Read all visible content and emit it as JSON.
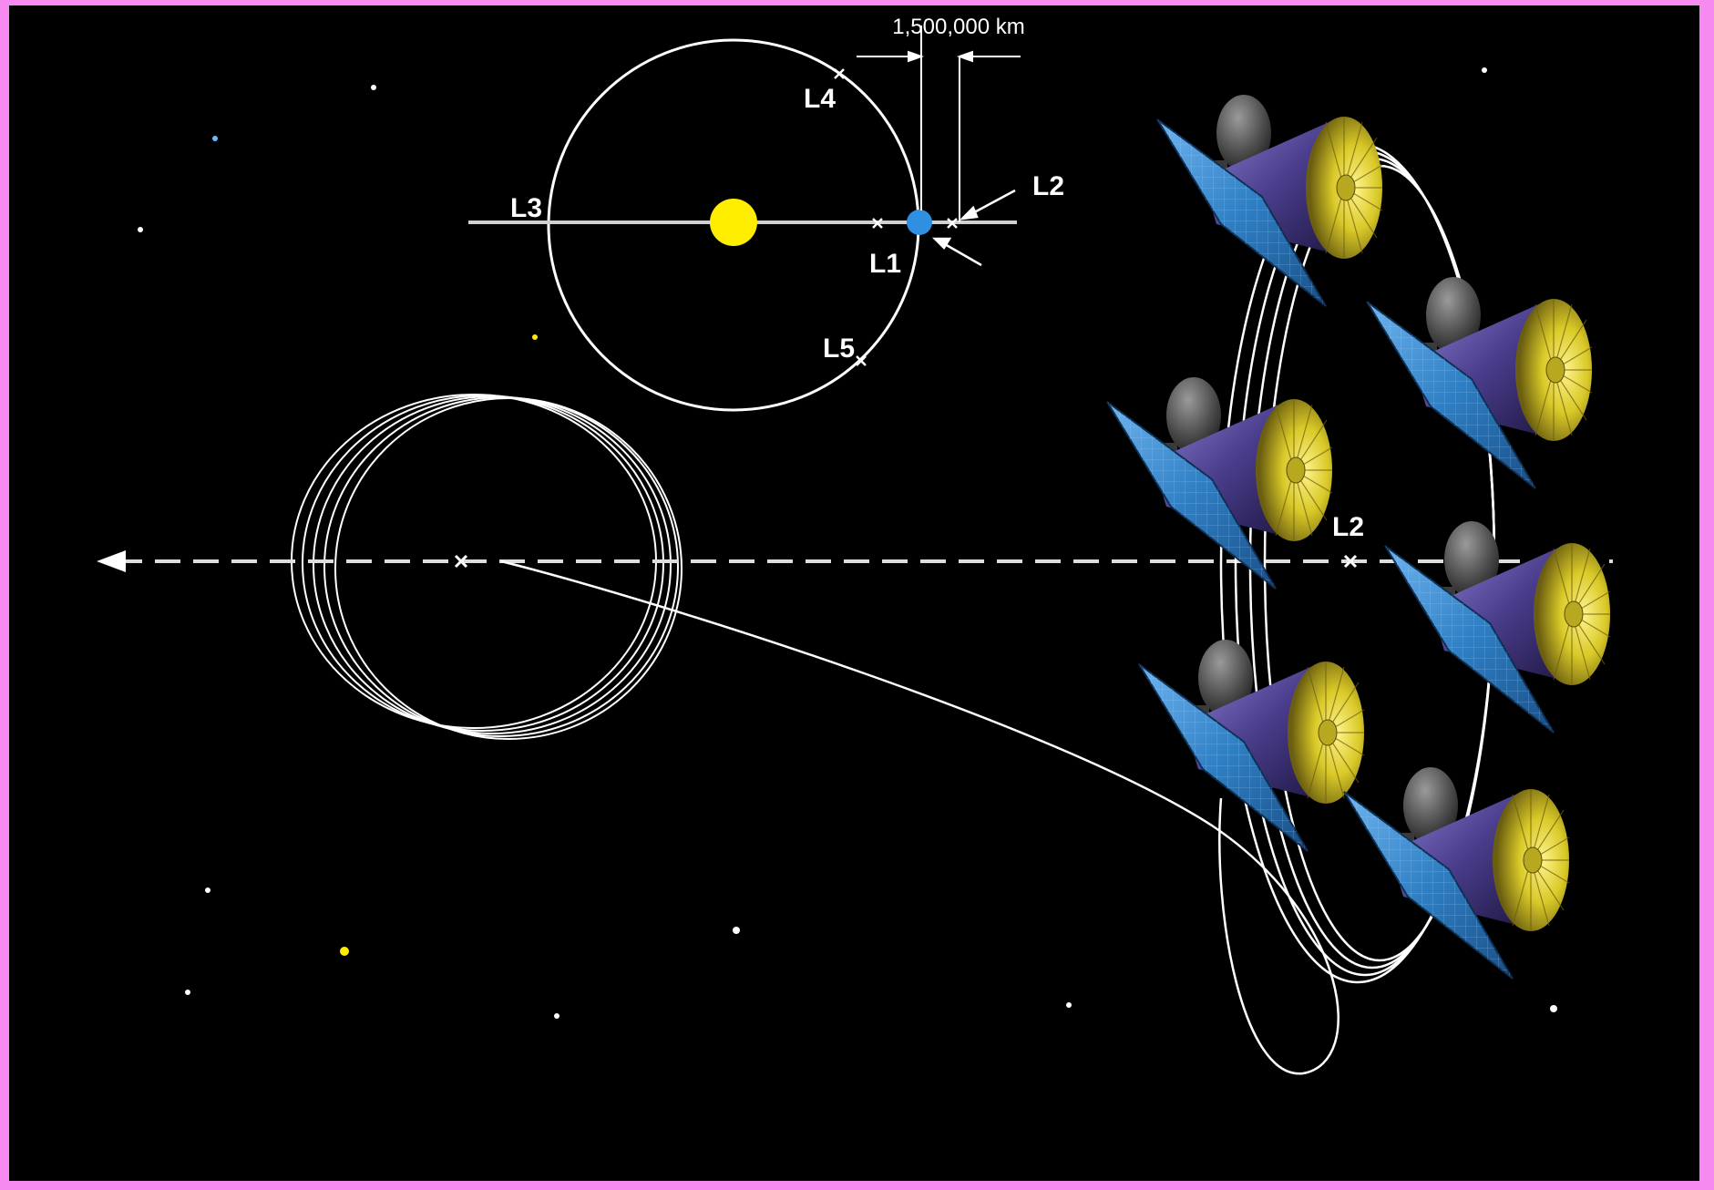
{
  "labels": {
    "distance": "1,500,000 km",
    "l1": "L1",
    "l2_inset": "L2",
    "l3": "L3",
    "l4": "L4",
    "l5": "L5",
    "l2_main": "L2"
  },
  "colors": {
    "background": "#000000",
    "frame": "#f78af0",
    "sun": "#ffee00",
    "earth": "#2f8fe0",
    "orbit": "#ffffff",
    "solar_panel": "#2f7fc4",
    "dish": "#e0d430",
    "spacecraft_body": "#4a3d8c"
  },
  "icons": {
    "sun": "sun-icon",
    "earth": "earth-icon",
    "spacecraft": "spacecraft-icon",
    "lagrange_point": "x-mark-icon",
    "direction_arrow": "arrow-left-icon"
  },
  "spacecraft_count": 6
}
